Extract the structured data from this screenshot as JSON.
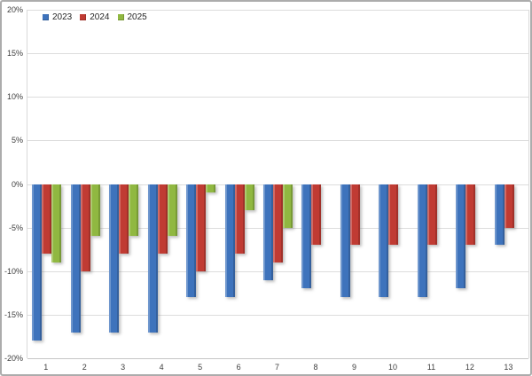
{
  "chart_data": {
    "type": "bar",
    "title": "",
    "xlabel": "",
    "ylabel": "",
    "categories": [
      "1",
      "2",
      "3",
      "4",
      "5",
      "6",
      "7",
      "8",
      "9",
      "10",
      "11",
      "12",
      "13"
    ],
    "series": [
      {
        "name": "2023",
        "color": "#3e73bc",
        "values": [
          -18,
          -17,
          -17,
          -17,
          -13,
          -13,
          -11,
          -12,
          -13,
          -13,
          -13,
          -12,
          -7
        ]
      },
      {
        "name": "2024",
        "color": "#c03b33",
        "values": [
          -8,
          -10,
          -8,
          -8,
          -10,
          -8,
          -9,
          -7,
          -7,
          -7,
          -7,
          -7,
          -5
        ]
      },
      {
        "name": "2025",
        "color": "#90b841",
        "values": [
          -9,
          -6,
          -6,
          -6,
          -1,
          -3,
          -5,
          null,
          null,
          null,
          null,
          null,
          null
        ]
      }
    ],
    "y_tick_labels": [
      "20%",
      "15%",
      "10%",
      "5%",
      "0%",
      "-5%",
      "-10%",
      "-15%",
      "-20%"
    ],
    "ylim": [
      -20,
      20
    ],
    "grid": true,
    "legend_position": "top-left",
    "colors": {
      "gridline": "#dcdcdc",
      "axis_text": "#3d3d3d",
      "chart_border": "#acacac",
      "background": "#ffffff"
    }
  }
}
